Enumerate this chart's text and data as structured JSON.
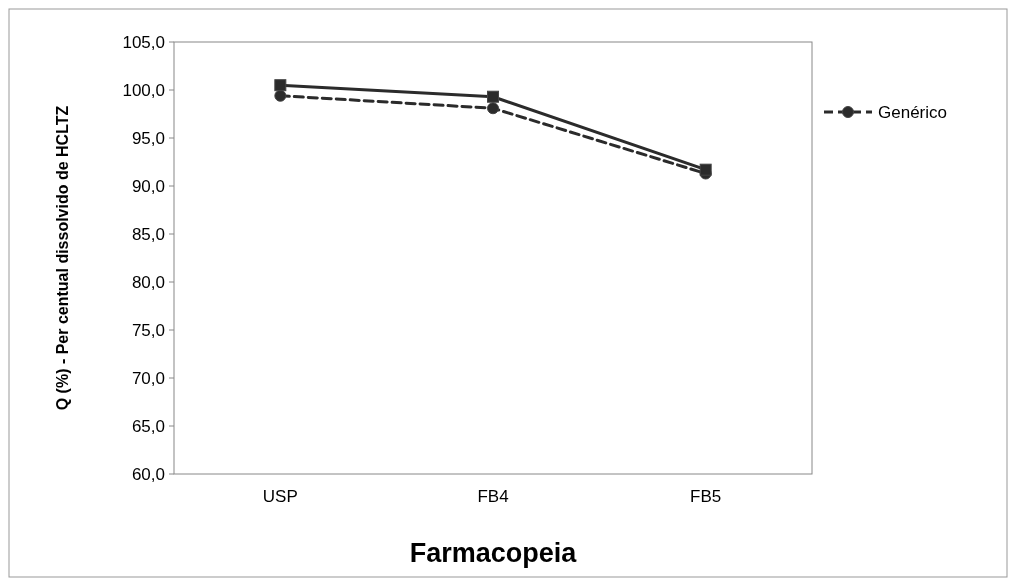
{
  "chart_data": {
    "type": "line",
    "categories": [
      "USP",
      "FB4",
      "FB5"
    ],
    "series": [
      {
        "color": "#2b2b2b",
        "values": [
          100.5,
          99.3,
          91.7
        ],
        "marker": "square",
        "line_style": "solid"
      },
      {
        "name": "Genérico",
        "color": "#2b2b2b",
        "values": [
          99.4,
          98.1,
          91.3
        ],
        "marker": "circle",
        "line_style": "dashed"
      }
    ],
    "xlabel": "Farmacopeia",
    "ylabel": "Q (%) - Per centual dissolvido de HCLTZ",
    "ylim": [
      60,
      105
    ],
    "yticks": [
      {
        "value": 60,
        "label": "60,0"
      },
      {
        "value": 65,
        "label": "65,0"
      },
      {
        "value": 70,
        "label": "70,0"
      },
      {
        "value": 75,
        "label": "75,0"
      },
      {
        "value": 80,
        "label": "80,0"
      },
      {
        "value": 85,
        "label": "85,0"
      },
      {
        "value": 90,
        "label": "90,0"
      },
      {
        "value": 95,
        "label": "95,0"
      },
      {
        "value": 100,
        "label": "100,0"
      },
      {
        "value": 105,
        "label": "105,0"
      }
    ],
    "grid": false,
    "legend": "top right"
  }
}
